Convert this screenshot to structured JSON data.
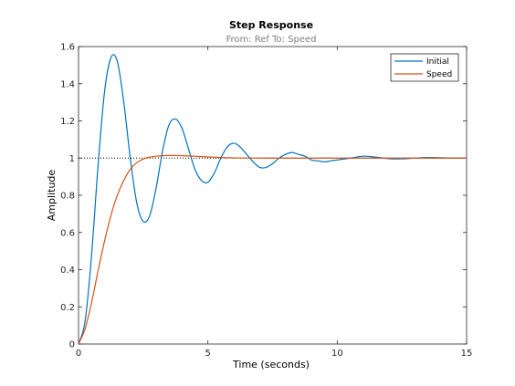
{
  "colors": {
    "background": "#ffffff",
    "axes": "#262626",
    "initial": "#0072BD",
    "speed": "#D95319",
    "reference": "#000000"
  },
  "chart_data": {
    "type": "line",
    "title": "Step Response",
    "subtitle": "From: Ref  To: Speed",
    "xlabel": "Time (seconds)",
    "ylabel": "Amplitude",
    "xlim": [
      0,
      15
    ],
    "ylim": [
      0,
      1.6
    ],
    "xticks": [
      0,
      5,
      10,
      15
    ],
    "yticks": [
      0,
      0.2,
      0.4,
      0.6,
      0.8,
      1,
      1.2,
      1.4,
      1.6
    ],
    "xtick_labels": [
      "0",
      "5",
      "10",
      "15"
    ],
    "ytick_labels": [
      "0",
      "0.2",
      "0.4",
      "0.6",
      "0.8",
      "1",
      "1.2",
      "1.4",
      "1.6"
    ],
    "grid": false,
    "legend_position": "top-right",
    "reference_line": {
      "y": 1,
      "style": "dotted"
    },
    "series": [
      {
        "name": "Initial",
        "color": "#0072BD",
        "x": [
          0,
          0.25,
          0.5,
          0.75,
          1.0,
          1.25,
          1.5,
          1.75,
          2.0,
          2.25,
          2.5,
          2.75,
          3.0,
          3.25,
          3.5,
          3.75,
          4.0,
          4.25,
          4.5,
          4.75,
          5.0,
          5.25,
          5.5,
          5.75,
          6.0,
          6.25,
          6.5,
          6.75,
          7.0,
          7.25,
          7.5,
          7.75,
          8.0,
          8.25,
          8.5,
          8.75,
          9.0,
          9.25,
          9.5,
          9.75,
          10.0,
          10.5,
          11.0,
          11.5,
          12.0,
          12.5,
          13.0,
          13.5,
          14.0,
          14.5,
          15.0
        ],
        "y": [
          0,
          0.12,
          0.47,
          0.95,
          1.35,
          1.54,
          1.52,
          1.3,
          1.0,
          0.76,
          0.66,
          0.69,
          0.84,
          1.04,
          1.18,
          1.21,
          1.16,
          1.05,
          0.94,
          0.88,
          0.87,
          0.92,
          1.0,
          1.06,
          1.08,
          1.06,
          1.02,
          0.98,
          0.95,
          0.95,
          0.97,
          1.0,
          1.02,
          1.03,
          1.02,
          1.01,
          0.99,
          0.985,
          0.98,
          0.985,
          0.99,
          1.0,
          1.01,
          1.005,
          0.997,
          0.996,
          1.0,
          1.003,
          1.002,
          1.0,
          1.0
        ]
      },
      {
        "name": "Speed",
        "color": "#D95319",
        "x": [
          0,
          0.25,
          0.5,
          0.75,
          1.0,
          1.25,
          1.5,
          1.75,
          2.0,
          2.25,
          2.5,
          2.75,
          3.0,
          3.25,
          3.5,
          3.75,
          4.0,
          4.5,
          5.0,
          5.5,
          6.0,
          7.0,
          8.0,
          10.0,
          12.0,
          15.0
        ],
        "y": [
          0,
          0.08,
          0.22,
          0.39,
          0.55,
          0.69,
          0.8,
          0.88,
          0.94,
          0.975,
          0.995,
          1.005,
          1.01,
          1.013,
          1.014,
          1.014,
          1.013,
          1.01,
          1.006,
          1.003,
          1.001,
          1.0,
          1.0,
          1.0,
          1.0,
          1.0
        ]
      }
    ]
  }
}
